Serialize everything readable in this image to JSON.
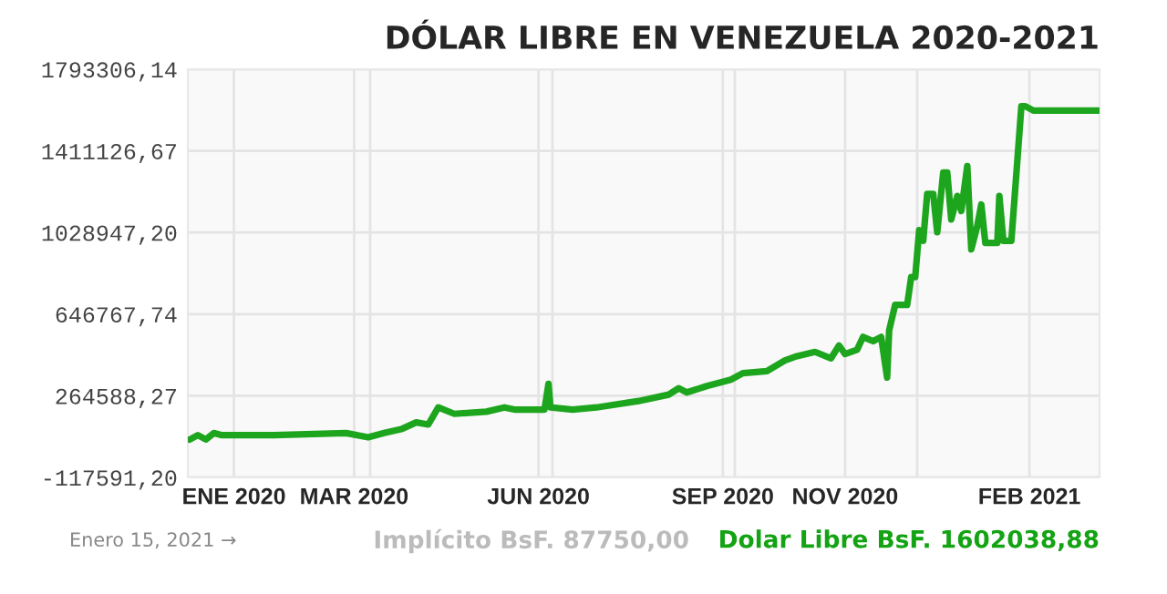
{
  "chart_data": {
    "type": "line",
    "title": "DÓLAR LIBRE EN VENEZUELA 2020-2021",
    "x": [
      "2019-12-10",
      "2019-12-14",
      "2019-12-18",
      "2019-12-22",
      "2019-12-26",
      "2020-01-21",
      "2020-02-26",
      "2020-03-08",
      "2020-03-16",
      "2020-03-25",
      "2020-04-01",
      "2020-04-07",
      "2020-04-12",
      "2020-04-20",
      "2020-05-06",
      "2020-05-15",
      "2020-05-20",
      "2020-06-04",
      "2020-06-06",
      "2020-06-07",
      "2020-06-18",
      "2020-06-30",
      "2020-07-21",
      "2020-08-05",
      "2020-08-10",
      "2020-08-14",
      "2020-08-24",
      "2020-09-05",
      "2020-09-11",
      "2020-09-23",
      "2020-10-02",
      "2020-10-08",
      "2020-10-17",
      "2020-10-25",
      "2020-10-29",
      "2020-11-01",
      "2020-11-07",
      "2020-11-10",
      "2020-11-15",
      "2020-11-19",
      "2020-11-22",
      "2020-11-23",
      "2020-11-26",
      "2020-12-02",
      "2020-12-04",
      "2020-12-06",
      "2020-12-08",
      "2020-12-10",
      "2020-12-12",
      "2020-12-15",
      "2020-12-17",
      "2020-12-20",
      "2020-12-22",
      "2020-12-24",
      "2020-12-27",
      "2020-12-29",
      "2021-01-01",
      "2021-01-03",
      "2021-01-06",
      "2021-01-08",
      "2021-01-10",
      "2021-01-16",
      "2021-01-17",
      "2021-01-19",
      "2021-01-23",
      "2021-01-28",
      "2021-01-30",
      "2021-02-03",
      "2021-03-08"
    ],
    "series": [
      {
        "color": "#1ea51e",
        "values": [
          60000,
          80000,
          60000,
          90000,
          80000,
          80000,
          90000,
          70000,
          90000,
          110000,
          140000,
          130000,
          210000,
          180000,
          190000,
          210000,
          200000,
          200000,
          320000,
          210000,
          200000,
          210000,
          240000,
          270000,
          300000,
          280000,
          310000,
          340000,
          370000,
          380000,
          430000,
          450000,
          470000,
          440000,
          500000,
          460000,
          480000,
          540000,
          520000,
          540000,
          350000,
          570000,
          690000,
          690000,
          820000,
          820000,
          1040000,
          990000,
          1210000,
          1210000,
          1030000,
          1310000,
          1310000,
          1090000,
          1200000,
          1130000,
          1340000,
          950000,
          1060000,
          1160000,
          980000,
          980000,
          1200000,
          990000,
          990000,
          1620000,
          1620000,
          1600000,
          1600000
        ]
      }
    ],
    "xlim": [
      "2019-12-09",
      "2021-03-08"
    ],
    "xticks": [
      {
        "value": "2020-01-01",
        "label": "ENE 2020"
      },
      {
        "value": "2020-03-01",
        "label": "MAR 2020"
      },
      {
        "value": "2020-03-09",
        "label": null
      },
      {
        "value": "2020-06-01",
        "label": "JUN 2020"
      },
      {
        "value": "2020-06-08",
        "label": null
      },
      {
        "value": "2020-09-01",
        "label": "SEP 2020"
      },
      {
        "value": "2020-09-07",
        "label": null
      },
      {
        "value": "2020-11-01",
        "label": "NOV 2020"
      },
      {
        "value": "2020-12-07",
        "label": null
      },
      {
        "value": "2021-02-01",
        "label": "FEB 2021"
      }
    ],
    "ylim": [
      -117591.2,
      1793306.14
    ],
    "yticks": [
      {
        "value": -117591.2,
        "label": "-117591,20"
      },
      {
        "value": 264588.27,
        "label": "264588,27"
      },
      {
        "value": 646767.74,
        "label": "646767,74"
      },
      {
        "value": 1028947.2,
        "label": "1028947,20"
      },
      {
        "value": 1411126.67,
        "label": "1411126,67"
      },
      {
        "value": 1793306.14,
        "label": "1793306,14"
      }
    ],
    "grid": true,
    "annotations": [
      "Enero 15, 2021 →",
      "Implícito BsF. 87750,00",
      "Dolar Libre BsF. 1602038,88"
    ]
  }
}
